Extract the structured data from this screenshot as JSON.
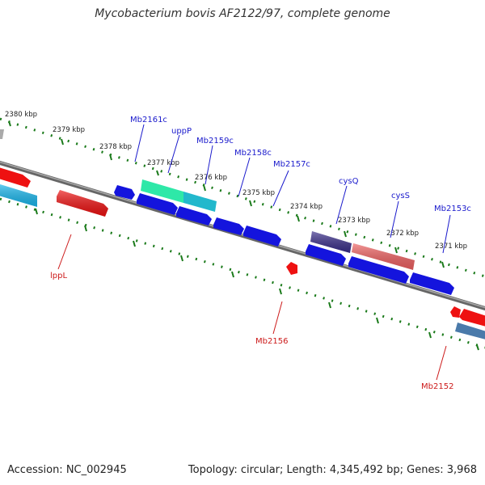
{
  "title": "Mycobacterium bovis AF2122/97, complete genome",
  "footer": {
    "accession": "Accession: NC_002945",
    "info": "Topology: circular; Length: 4,345,492 bp; Genes: 3,968"
  },
  "scale_labels": [
    "2380 kbp",
    "2379 kbp",
    "2378 kbp",
    "2377 kbp",
    "2376 kbp",
    "2375 kbp",
    "2374 kbp",
    "2373 kbp",
    "2372 kbp",
    "2371 kbp"
  ],
  "gene_labels": [
    {
      "name": "Mb2161c",
      "color": "#1a1acc"
    },
    {
      "name": "uppP",
      "color": "#1a1acc"
    },
    {
      "name": "Mb2159c",
      "color": "#1a1acc"
    },
    {
      "name": "Mb2158c",
      "color": "#1a1acc"
    },
    {
      "name": "Mb2157c",
      "color": "#1a1acc"
    },
    {
      "name": "cysQ",
      "color": "#1a1acc"
    },
    {
      "name": "cysS",
      "color": "#1a1acc"
    },
    {
      "name": "Mb2153c",
      "color": "#1a1acc"
    },
    {
      "name": "lppL",
      "color": "#cc1a1a"
    },
    {
      "name": "Mb2156",
      "color": "#cc1a1a"
    },
    {
      "name": "Mb2152",
      "color": "#cc1a1a"
    }
  ],
  "colors": {
    "backbone": "#7a7a7a",
    "tick": "#1a7a1a",
    "blue": "#1414dd",
    "red": "#ee1111"
  }
}
